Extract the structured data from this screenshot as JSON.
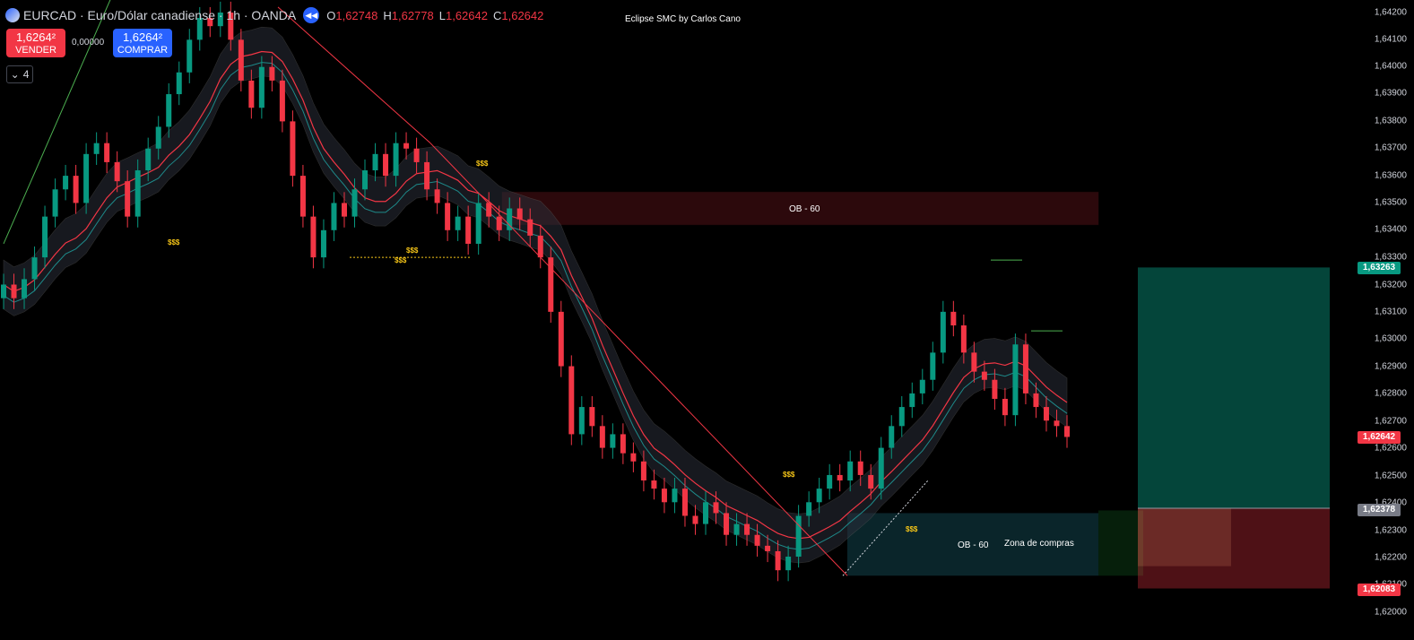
{
  "header": {
    "symbol_title": "EURCAD · Euro/Dólar canadiense · 1h · OANDA",
    "replay_icon": "rewind-icon",
    "ohlc": [
      {
        "k": "O",
        "v": "1,62748"
      },
      {
        "k": "H",
        "v": "1,62778"
      },
      {
        "k": "L",
        "v": "1,62642"
      },
      {
        "k": "C",
        "v": "1,62642"
      }
    ]
  },
  "indicator_title": "Eclipse SMC by Carlos Cano",
  "trade": {
    "sell_price": "1,6264²",
    "sell_label": "VENDER",
    "spread": "0,00000",
    "buy_price": "1,6264²",
    "buy_label": "COMPRAR"
  },
  "collapse_count": "4",
  "price_axis": {
    "ticks": [
      "1,64200",
      "1,64100",
      "1,64000",
      "1,63900",
      "1,63800",
      "1,63700",
      "1,63600",
      "1,63500",
      "1,63400",
      "1,63300",
      "1,63200",
      "1,63100",
      "1,63000",
      "1,62900",
      "1,62800",
      "1,62700",
      "1,62600",
      "1,62500",
      "1,62400",
      "1,62300",
      "1,62200",
      "1,62100",
      "1,62000"
    ],
    "labels": [
      {
        "text": "1,63263",
        "color": "#089981"
      },
      {
        "text": "1,62642",
        "color": "#f23645"
      },
      {
        "text": "1,62378",
        "color": "#787b86"
      },
      {
        "text": "1,62083",
        "color": "#f23645"
      }
    ]
  },
  "annotations": {
    "ob_upper": "OB - 60",
    "ob_lower": "OB - 60",
    "buy_zone": "Zona de compras",
    "liquidity": "$$$"
  },
  "colors": {
    "bull": "#089981",
    "bear": "#f23645",
    "background": "#000000"
  },
  "chart_data": {
    "type": "candlestick",
    "symbol": "EURCAD",
    "timeframe": "1h",
    "y_range": [
      1.6197,
      1.6422
    ],
    "closes_estimated": [
      1.632,
      1.6315,
      1.6322,
      1.633,
      1.6345,
      1.6355,
      1.636,
      1.635,
      1.6368,
      1.6372,
      1.6365,
      1.6358,
      1.6345,
      1.6362,
      1.637,
      1.6378,
      1.639,
      1.6398,
      1.641,
      1.6418,
      1.6415,
      1.642,
      1.641,
      1.6395,
      1.6385,
      1.64,
      1.6395,
      1.638,
      1.636,
      1.6345,
      1.633,
      1.634,
      1.635,
      1.6345,
      1.6355,
      1.6362,
      1.6368,
      1.636,
      1.6372,
      1.637,
      1.6365,
      1.6355,
      1.635,
      1.634,
      1.6345,
      1.6335,
      1.635,
      1.6345,
      1.634,
      1.6348,
      1.6344,
      1.6338,
      1.633,
      1.631,
      1.629,
      1.6265,
      1.6275,
      1.6268,
      1.626,
      1.6265,
      1.6258,
      1.6255,
      1.6248,
      1.6245,
      1.624,
      1.6245,
      1.6235,
      1.6232,
      1.624,
      1.6236,
      1.6228,
      1.6232,
      1.6228,
      1.6224,
      1.6222,
      1.6215,
      1.622,
      1.6235,
      1.624,
      1.6245,
      1.625,
      1.6248,
      1.6255,
      1.625,
      1.6245,
      1.626,
      1.6268,
      1.6275,
      1.628,
      1.6285,
      1.6295,
      1.631,
      1.6305,
      1.6295,
      1.6288,
      1.6285,
      1.6278,
      1.6272,
      1.6298,
      1.628,
      1.6275,
      1.627,
      1.6268,
      1.6264
    ],
    "liquidity_levels": [
      "$$$"
    ],
    "order_blocks": [
      {
        "label": "OB - 60",
        "top": 1.6354,
        "bottom": 1.6342
      },
      {
        "label": "OB - 60",
        "top": 1.6236,
        "bottom": 1.6213
      }
    ],
    "position": {
      "entry": 1.62378,
      "target": 1.63263,
      "stop": 1.62083,
      "current": 1.62642
    }
  }
}
